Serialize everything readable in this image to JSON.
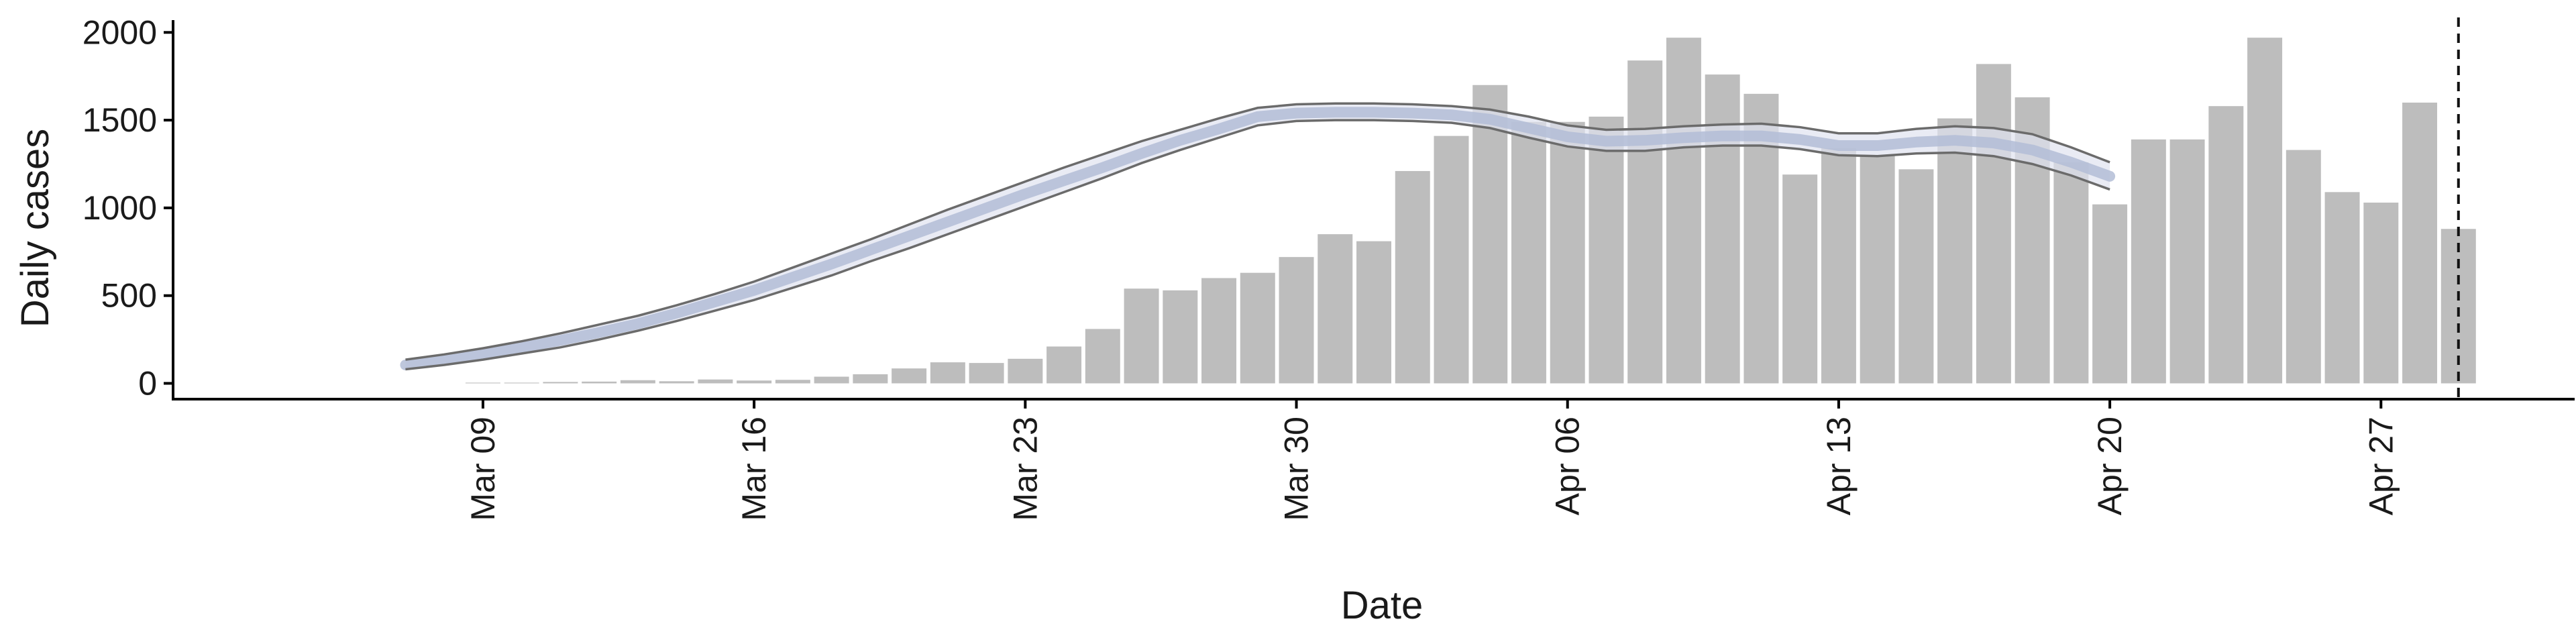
{
  "chart_data": {
    "type": "bar",
    "xlabel": "Date",
    "ylabel": "Daily cases",
    "ylim": [
      -90,
      2070
    ],
    "yticks": [
      0,
      500,
      1000,
      1500,
      2000
    ],
    "xlim": [
      "2020-03-01",
      "2020-05-02"
    ],
    "xticks": [
      {
        "date": "2020-03-09",
        "label": "Mar 09"
      },
      {
        "date": "2020-03-16",
        "label": "Mar 16"
      },
      {
        "date": "2020-03-23",
        "label": "Mar 23"
      },
      {
        "date": "2020-03-30",
        "label": "Mar 30"
      },
      {
        "date": "2020-04-06",
        "label": "Apr 06"
      },
      {
        "date": "2020-04-13",
        "label": "Apr 13"
      },
      {
        "date": "2020-04-20",
        "label": "Apr 20"
      },
      {
        "date": "2020-04-27",
        "label": "Apr 27"
      }
    ],
    "grid": false,
    "legend": "none",
    "bars": {
      "color": "#bdbdbd",
      "start_date": "2020-03-09",
      "values": [
        4,
        4,
        8,
        10,
        18,
        12,
        22,
        16,
        20,
        38,
        52,
        85,
        120,
        116,
        140,
        210,
        310,
        540,
        530,
        600,
        630,
        720,
        850,
        810,
        1210,
        1410,
        1700,
        1490,
        1490,
        1520,
        1840,
        1970,
        1760,
        1650,
        1190,
        1340,
        1300,
        1220,
        1510,
        1820,
        1630,
        1260,
        1020,
        1390,
        1390,
        1580,
        1970,
        1330,
        1090,
        1030,
        1600,
        880
      ]
    },
    "curve": {
      "color": "#b3bdd6",
      "band_color": "#dfe3f0",
      "bound_color": "#6b6b6b",
      "dates": [
        "2020-03-07",
        "2020-03-08",
        "2020-03-09",
        "2020-03-10",
        "2020-03-11",
        "2020-03-12",
        "2020-03-13",
        "2020-03-14",
        "2020-03-15",
        "2020-03-16",
        "2020-03-17",
        "2020-03-18",
        "2020-03-19",
        "2020-03-20",
        "2020-03-21",
        "2020-03-22",
        "2020-03-23",
        "2020-03-24",
        "2020-03-25",
        "2020-03-26",
        "2020-03-27",
        "2020-03-28",
        "2020-03-29",
        "2020-03-30",
        "2020-03-31",
        "2020-04-01",
        "2020-04-02",
        "2020-04-03",
        "2020-04-04",
        "2020-04-05",
        "2020-04-06",
        "2020-04-07",
        "2020-04-08",
        "2020-04-09",
        "2020-04-10",
        "2020-04-11",
        "2020-04-12",
        "2020-04-13",
        "2020-04-14",
        "2020-04-15",
        "2020-04-16",
        "2020-04-17",
        "2020-04-18",
        "2020-04-19",
        "2020-04-20"
      ],
      "median": [
        105,
        135,
        170,
        205,
        245,
        290,
        340,
        400,
        465,
        530,
        605,
        680,
        760,
        840,
        920,
        1000,
        1080,
        1155,
        1230,
        1310,
        1385,
        1450,
        1520,
        1540,
        1545,
        1545,
        1540,
        1530,
        1505,
        1455,
        1405,
        1380,
        1385,
        1400,
        1410,
        1410,
        1390,
        1355,
        1355,
        1375,
        1385,
        1370,
        1330,
        1260,
        1180
      ],
      "lower": [
        80,
        105,
        135,
        170,
        205,
        250,
        300,
        355,
        415,
        475,
        545,
        615,
        695,
        770,
        850,
        930,
        1010,
        1090,
        1170,
        1255,
        1330,
        1400,
        1470,
        1495,
        1500,
        1500,
        1495,
        1485,
        1455,
        1400,
        1350,
        1325,
        1325,
        1345,
        1355,
        1355,
        1335,
        1300,
        1295,
        1310,
        1315,
        1295,
        1250,
        1185,
        1105
      ],
      "upper": [
        135,
        165,
        200,
        240,
        285,
        335,
        385,
        445,
        510,
        580,
        660,
        740,
        820,
        905,
        990,
        1070,
        1150,
        1230,
        1305,
        1380,
        1445,
        1510,
        1570,
        1590,
        1595,
        1595,
        1590,
        1580,
        1560,
        1520,
        1470,
        1445,
        1450,
        1465,
        1475,
        1480,
        1460,
        1425,
        1425,
        1450,
        1465,
        1455,
        1420,
        1345,
        1260
      ]
    },
    "vline": {
      "date": "2020-04-29",
      "style": "dashed"
    }
  }
}
